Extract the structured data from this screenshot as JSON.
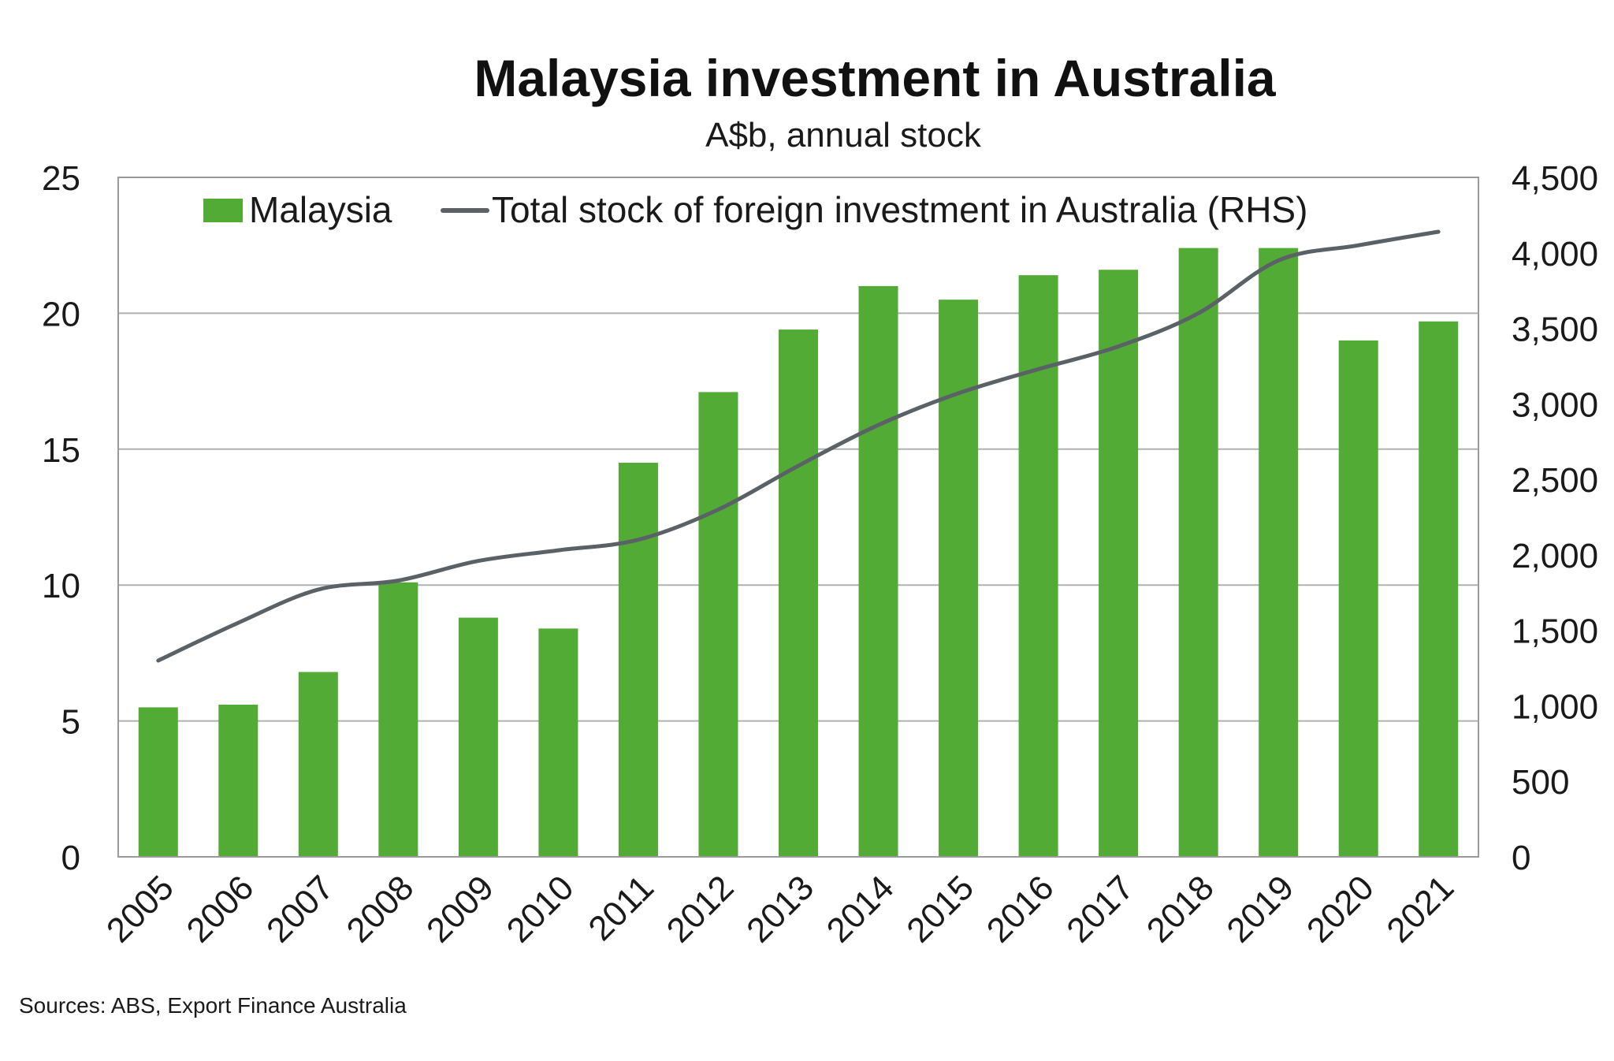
{
  "chart_data": {
    "type": "bar",
    "title": "Malaysia investment in Australia",
    "subtitle": "A$b, annual stock",
    "source": "Sources: ABS, Export Finance Australia",
    "categories": [
      "2005",
      "2006",
      "2007",
      "2008",
      "2009",
      "2010",
      "2011",
      "2012",
      "2013",
      "2014",
      "2015",
      "2016",
      "2017",
      "2018",
      "2019",
      "2020",
      "2021"
    ],
    "series": [
      {
        "name": "Malaysia",
        "type": "bar",
        "axis": "left",
        "color": "#52ab34",
        "values": [
          5.5,
          5.6,
          6.8,
          10.1,
          8.8,
          8.4,
          14.5,
          17.1,
          19.4,
          21.0,
          20.5,
          21.4,
          21.6,
          22.4,
          22.4,
          19.0,
          19.7
        ]
      },
      {
        "name": "Total stock of foreign investment in Australia (RHS)",
        "type": "line",
        "axis": "right",
        "color": "#5a6268",
        "values": [
          1300,
          1550,
          1770,
          1830,
          1960,
          2030,
          2100,
          2300,
          2590,
          2860,
          3070,
          3230,
          3380,
          3600,
          3950,
          4050,
          4140
        ]
      }
    ],
    "y_left": {
      "min": 0,
      "max": 25,
      "ticks": [
        "0",
        "5",
        "10",
        "15",
        "20",
        "25"
      ]
    },
    "y_right": {
      "min": 0,
      "max": 4500,
      "ticks": [
        "0",
        "500",
        "1,000",
        "1,500",
        "2,000",
        "2,500",
        "3,000",
        "3,500",
        "4,000",
        "4,500"
      ]
    },
    "grid": true,
    "legend_position": "top"
  }
}
